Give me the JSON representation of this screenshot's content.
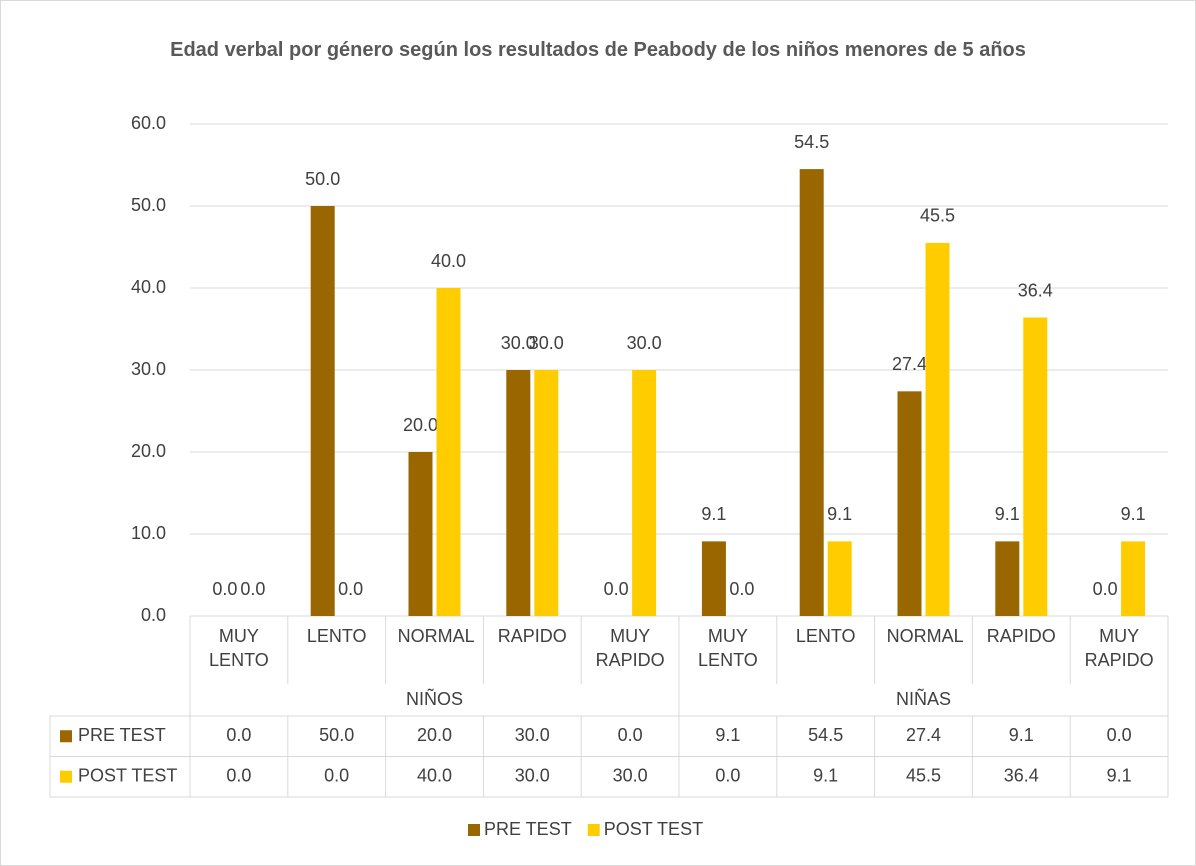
{
  "chart_data": {
    "type": "bar",
    "title": "Edad verbal por género según los resultados de Peabody de los niños menores de 5 años",
    "categories": [
      "MUY LENTO",
      "LENTO",
      "NORMAL",
      "RAPIDO",
      "MUY RAPIDO",
      "MUY LENTO",
      "LENTO",
      "NORMAL",
      "RAPIDO",
      "MUY RAPIDO"
    ],
    "groups": [
      "NIÑOS",
      "NIÑAS"
    ],
    "series": [
      {
        "name": "PRE TEST",
        "color": "#996600",
        "values": [
          0,
          50,
          20,
          30,
          0,
          9.1,
          54.5,
          27.4,
          9.1,
          0
        ],
        "value_labels": [
          "0.0",
          "50.0",
          "20.0",
          "30.0",
          "0.0",
          "9.1",
          "54.5",
          "27.4",
          "9.1",
          "0.0"
        ]
      },
      {
        "name": "POST TEST",
        "color": "#FFCC00",
        "values": [
          0,
          0,
          40,
          30,
          30,
          0,
          9.1,
          45.5,
          36.4,
          9.1
        ],
        "value_labels": [
          "0.0",
          "0.0",
          "40.0",
          "30.0",
          "30.0",
          "0.0",
          "9.1",
          "45.5",
          "36.4",
          "9.1"
        ]
      }
    ],
    "ylim": [
      0,
      60
    ],
    "yticks": [
      {
        "value": 0,
        "label": "0.0"
      },
      {
        "value": 10,
        "label": "10.0"
      },
      {
        "value": 20,
        "label": "20.0"
      },
      {
        "value": 30,
        "label": "30.0"
      },
      {
        "value": 40,
        "label": "40.0"
      },
      {
        "value": 50,
        "label": "50.0"
      },
      {
        "value": 60,
        "label": "60.0"
      }
    ],
    "grid": true
  }
}
